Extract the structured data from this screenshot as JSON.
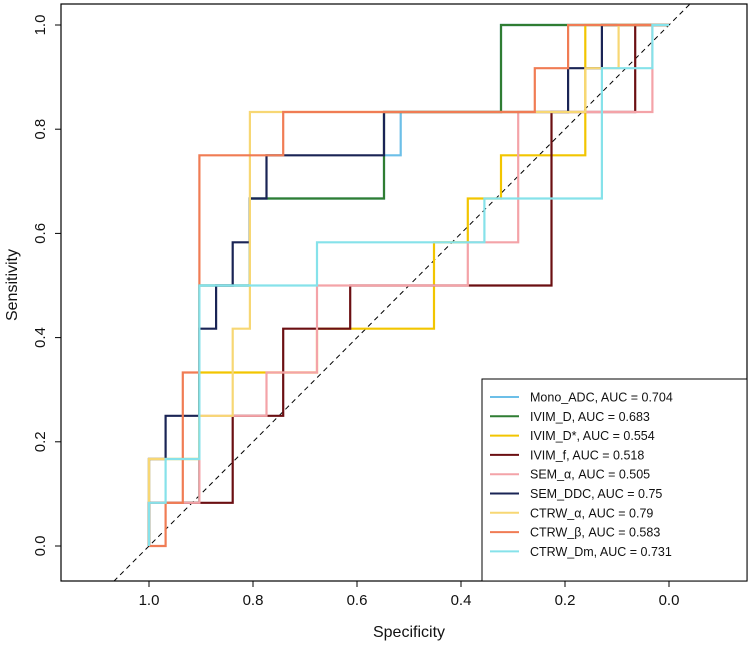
{
  "chart_data": {
    "type": "line",
    "title": "",
    "xlabel": "Specificity",
    "ylabel": "Sensitivity",
    "xlim": [
      1.15,
      -0.15
    ],
    "ylim": [
      0.0,
      1.0
    ],
    "x_ticks": [
      "1.0",
      "0.8",
      "0.6",
      "0.4",
      "0.2",
      "0.0"
    ],
    "y_ticks": [
      "0.0",
      "0.2",
      "0.4",
      "0.6",
      "0.8",
      "1.0"
    ],
    "grid": false,
    "legend_position": "bottom-right",
    "reference_line": {
      "style": "dashed",
      "from": [
        1.0,
        0.0
      ],
      "to": [
        0.0,
        1.0
      ]
    },
    "series": [
      {
        "name": "Mono_ADC",
        "legend": "Mono_ADC, AUC = 0.704",
        "auc": 0.704,
        "color": "#6cbfe8",
        "specificity": [
          1.0,
          1.0,
          0.903,
          0.903,
          0.806,
          0.806,
          0.548,
          0.548,
          0.516,
          0.516,
          0.323,
          0.323,
          0.0
        ],
        "sensitivity": [
          0.0,
          0.083,
          0.083,
          0.5,
          0.5,
          0.667,
          0.667,
          0.75,
          0.75,
          0.833,
          0.833,
          1.0,
          1.0
        ]
      },
      {
        "name": "IVIM_D",
        "legend": "IVIM_D, AUC = 0.683",
        "auc": 0.683,
        "color": "#2f7d32",
        "specificity": [
          1.0,
          1.0,
          0.903,
          0.903,
          0.806,
          0.806,
          0.548,
          0.548,
          0.323,
          0.323,
          0.0
        ],
        "sensitivity": [
          0.0,
          0.083,
          0.083,
          0.5,
          0.5,
          0.667,
          0.667,
          0.833,
          0.833,
          1.0,
          1.0
        ]
      },
      {
        "name": "IVIM_D*",
        "legend": "IVIM_D*, AUC = 0.554",
        "auc": 0.554,
        "color": "#f2c500",
        "specificity": [
          1.0,
          1.0,
          0.903,
          0.903,
          0.677,
          0.677,
          0.645,
          0.645,
          0.452,
          0.452,
          0.419,
          0.419,
          0.387,
          0.387,
          0.355,
          0.355,
          0.323,
          0.323,
          0.161,
          0.161,
          0.0
        ],
        "sensitivity": [
          0.0,
          0.167,
          0.167,
          0.333,
          0.333,
          0.417,
          0.417,
          0.417,
          0.417,
          0.583,
          0.583,
          0.583,
          0.583,
          0.667,
          0.667,
          0.667,
          0.667,
          0.75,
          0.75,
          1.0,
          1.0
        ]
      },
      {
        "name": "IVIM_f",
        "legend": "IVIM_f, AUC = 0.518",
        "auc": 0.518,
        "color": "#6b0f12",
        "specificity": [
          1.0,
          1.0,
          0.903,
          0.903,
          0.839,
          0.839,
          0.742,
          0.742,
          0.613,
          0.613,
          0.226,
          0.226,
          0.065,
          0.065,
          0.0
        ],
        "sensitivity": [
          0.0,
          0.083,
          0.083,
          0.083,
          0.083,
          0.25,
          0.25,
          0.417,
          0.417,
          0.5,
          0.5,
          0.833,
          0.833,
          1.0,
          1.0
        ]
      },
      {
        "name": "SEM_α",
        "legend": "SEM_α, AUC = 0.505",
        "auc": 0.505,
        "color": "#f4a3a8",
        "specificity": [
          1.0,
          1.0,
          0.903,
          0.903,
          0.774,
          0.774,
          0.677,
          0.677,
          0.387,
          0.387,
          0.29,
          0.29,
          0.097,
          0.097,
          0.032,
          0.032,
          0.0
        ],
        "sensitivity": [
          0.0,
          0.083,
          0.083,
          0.25,
          0.25,
          0.333,
          0.333,
          0.5,
          0.5,
          0.583,
          0.583,
          0.833,
          0.833,
          0.833,
          0.833,
          1.0,
          1.0
        ]
      },
      {
        "name": "SEM_DDC",
        "legend": "SEM_DDC, AUC = 0.75",
        "auc": 0.75,
        "color": "#1a2455",
        "specificity": [
          1.0,
          1.0,
          0.968,
          0.968,
          0.903,
          0.903,
          0.871,
          0.871,
          0.839,
          0.839,
          0.806,
          0.806,
          0.774,
          0.774,
          0.548,
          0.548,
          0.194,
          0.194,
          0.129,
          0.129,
          0.0
        ],
        "sensitivity": [
          0.0,
          0.167,
          0.167,
          0.25,
          0.25,
          0.417,
          0.417,
          0.5,
          0.5,
          0.583,
          0.583,
          0.667,
          0.667,
          0.75,
          0.75,
          0.833,
          0.833,
          0.917,
          0.917,
          1.0,
          1.0
        ]
      },
      {
        "name": "CTRW_α",
        "legend": "CTRW_α, AUC = 0.79",
        "auc": 0.79,
        "color": "#f7d774",
        "specificity": [
          1.0,
          1.0,
          0.903,
          0.903,
          0.839,
          0.839,
          0.806,
          0.806,
          0.774,
          0.774,
          0.516,
          0.516,
          0.161,
          0.161,
          0.097,
          0.097,
          0.0
        ],
        "sensitivity": [
          0.0,
          0.167,
          0.167,
          0.25,
          0.25,
          0.417,
          0.417,
          0.833,
          0.833,
          0.833,
          0.833,
          0.833,
          0.833,
          0.917,
          0.917,
          1.0,
          1.0
        ]
      },
      {
        "name": "CTRW_β",
        "legend": "CTRW_β, AUC = 0.583",
        "auc": 0.583,
        "color": "#f07c54",
        "specificity": [
          1.0,
          0.968,
          0.968,
          0.935,
          0.935,
          0.903,
          0.903,
          0.742,
          0.742,
          0.258,
          0.258,
          0.194,
          0.194,
          0.0
        ],
        "sensitivity": [
          0.0,
          0.0,
          0.083,
          0.083,
          0.333,
          0.333,
          0.75,
          0.75,
          0.833,
          0.833,
          0.917,
          0.917,
          1.0,
          1.0
        ]
      },
      {
        "name": "CTRW_Dm",
        "legend": "CTRW_Dm, AUC = 0.731",
        "auc": 0.731,
        "color": "#86e2ea",
        "specificity": [
          1.0,
          1.0,
          0.968,
          0.968,
          0.903,
          0.903,
          0.677,
          0.677,
          0.355,
          0.355,
          0.129,
          0.129,
          0.032,
          0.032,
          0.0
        ],
        "sensitivity": [
          0.0,
          0.083,
          0.083,
          0.167,
          0.167,
          0.5,
          0.5,
          0.583,
          0.583,
          0.667,
          0.667,
          0.917,
          0.917,
          1.0,
          1.0
        ]
      }
    ]
  }
}
